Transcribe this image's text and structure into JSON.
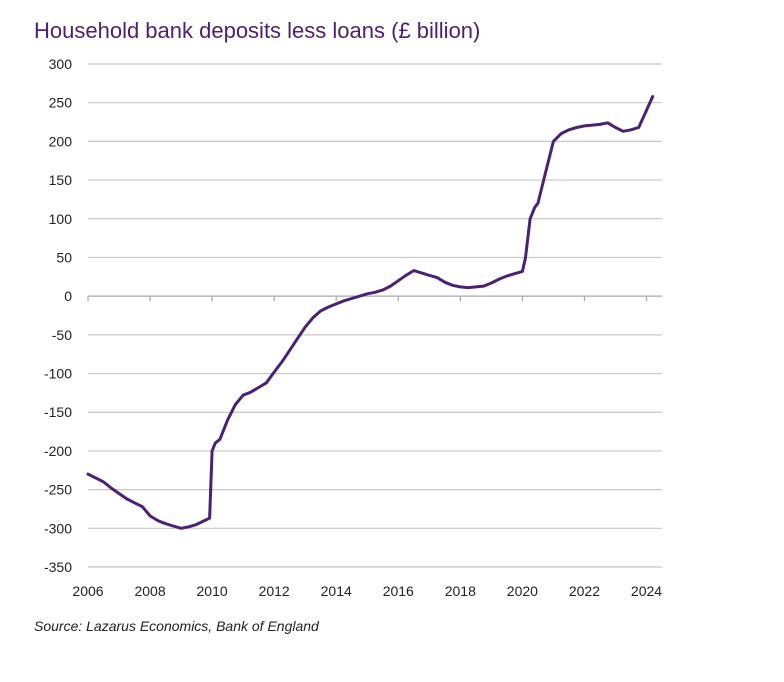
{
  "chart_data": {
    "type": "line",
    "title": "Household bank deposits less loans (£ billion)",
    "source": "Source: Lazarus Economics, Bank of England",
    "xlabel": "",
    "ylabel": "",
    "xlim": [
      2006,
      2024.5
    ],
    "ylim": [
      -350,
      300
    ],
    "x_ticks": [
      2006,
      2008,
      2010,
      2012,
      2014,
      2016,
      2018,
      2020,
      2022,
      2024
    ],
    "y_ticks": [
      300,
      250,
      200,
      150,
      100,
      50,
      0,
      -50,
      -100,
      -150,
      -200,
      -250,
      -300,
      -350
    ],
    "grid": true,
    "legend": "none",
    "color": "#4b2273",
    "series": [
      {
        "x": [
          2006.0,
          2006.25,
          2006.5,
          2006.75,
          2007.0,
          2007.25,
          2007.5,
          2007.75,
          2008.0,
          2008.25,
          2008.5,
          2008.75,
          2009.0,
          2009.25,
          2009.5,
          2009.75,
          2009.92,
          2010.0,
          2010.1,
          2010.25,
          2010.5,
          2010.6,
          2010.75,
          2011.0,
          2011.25,
          2011.5,
          2011.75,
          2012.0,
          2012.25,
          2012.5,
          2012.75,
          2013.0,
          2013.25,
          2013.5,
          2013.75,
          2014.0,
          2014.25,
          2014.5,
          2014.75,
          2015.0,
          2015.25,
          2015.5,
          2015.75,
          2016.0,
          2016.25,
          2016.5,
          2016.75,
          2017.0,
          2017.25,
          2017.5,
          2017.75,
          2018.0,
          2018.25,
          2018.5,
          2018.75,
          2019.0,
          2019.25,
          2019.5,
          2019.75,
          2020.0,
          2020.1,
          2020.25,
          2020.4,
          2020.5,
          2020.75,
          2021.0,
          2021.25,
          2021.5,
          2021.75,
          2022.0,
          2022.25,
          2022.5,
          2022.75,
          2023.0,
          2023.25,
          2023.5,
          2023.75,
          2024.0,
          2024.2
        ],
        "y": [
          -230,
          -235,
          -240,
          -248,
          -255,
          -262,
          -267,
          -272,
          -284,
          -290,
          -294,
          -297,
          -300,
          -298,
          -295,
          -290,
          -287,
          -200,
          -190,
          -185,
          -160,
          -152,
          -140,
          -128,
          -124,
          -118,
          -112,
          -98,
          -85,
          -70,
          -55,
          -40,
          -28,
          -19,
          -14,
          -10,
          -6,
          -3,
          0,
          3,
          5,
          8,
          13,
          20,
          27,
          33,
          30,
          27,
          24,
          18,
          14,
          12,
          11,
          12,
          13,
          17,
          22,
          26,
          29,
          32,
          50,
          100,
          115,
          120,
          160,
          200,
          210,
          215,
          218,
          220,
          221,
          222,
          224,
          218,
          213,
          215,
          218,
          240,
          258
        ]
      }
    ]
  }
}
